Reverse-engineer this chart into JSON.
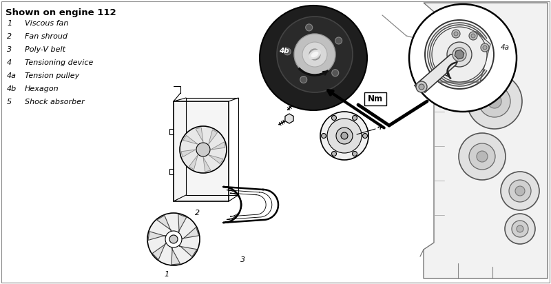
{
  "title": "Shown on engine 112",
  "bg_color": "#ffffff",
  "border_color": "#555555",
  "legend_items": [
    {
      "num": "1",
      "label": "Viscous fan"
    },
    {
      "num": "2",
      "label": "Fan shroud"
    },
    {
      "num": "3",
      "label": "Poly-V belt"
    },
    {
      "num": "4",
      "label": "Tensioning device"
    },
    {
      "num": "4a",
      "label": "Tension pulley"
    },
    {
      "num": "4b",
      "label": "Hexagon"
    },
    {
      "num": "5",
      "label": "Shock absorber"
    }
  ],
  "fig_width": 8.0,
  "fig_height": 4.12,
  "dpi": 100,
  "text_color": "#000000",
  "title_fontsize": 9.5,
  "label_fontsize": 8.0,
  "num_fontsize": 8.0,
  "diagram_border": [
    218,
    5,
    792,
    407
  ]
}
